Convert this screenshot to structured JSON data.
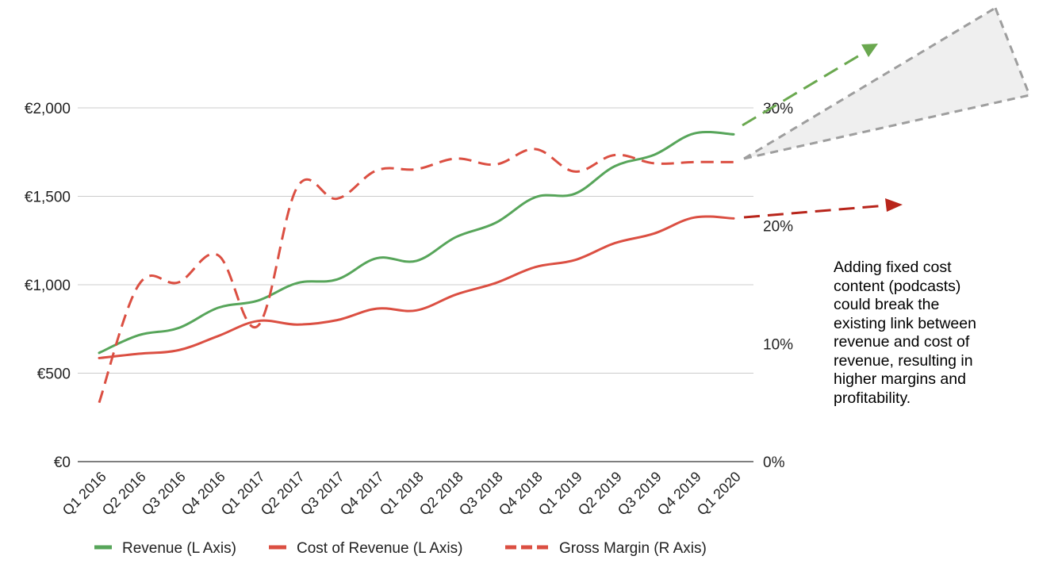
{
  "chart_data": {
    "type": "line",
    "categories": [
      "Q1 2016",
      "Q2 2016",
      "Q3 2016",
      "Q4 2016",
      "Q1 2017",
      "Q2 2017",
      "Q3 2017",
      "Q4 2017",
      "Q1 2018",
      "Q2 2018",
      "Q3 2018",
      "Q4 2018",
      "Q1 2019",
      "Q2 2019",
      "Q3 2019",
      "Q4 2019",
      "Q1 2020"
    ],
    "left_axis": {
      "ylim": [
        0,
        2000
      ],
      "ticks": [
        0,
        500,
        1000,
        1500,
        2000
      ],
      "tick_labels": [
        "€0",
        "€500",
        "€1,000",
        "€1,500",
        "€2,000"
      ]
    },
    "right_axis": {
      "ylim": [
        0,
        30
      ],
      "ticks": [
        0,
        10,
        20,
        30
      ],
      "tick_labels": [
        "0%",
        "10%",
        "20%",
        "30%"
      ]
    },
    "grid": true,
    "legend_position": "bottom",
    "series": [
      {
        "name": "Revenue (L Axis)",
        "axis": "left",
        "style": "solid",
        "color": "#57A55A",
        "values": [
          615,
          715,
          755,
          870,
          910,
          1010,
          1030,
          1150,
          1135,
          1270,
          1350,
          1495,
          1515,
          1670,
          1735,
          1855,
          1850
        ]
      },
      {
        "name": "Cost of Revenue (L Axis)",
        "axis": "left",
        "style": "solid",
        "color": "#DB4F42",
        "values": [
          585,
          610,
          630,
          710,
          795,
          775,
          800,
          865,
          855,
          945,
          1010,
          1100,
          1140,
          1235,
          1290,
          1380,
          1375
        ]
      },
      {
        "name": "Gross Margin (R Axis)",
        "axis": "right",
        "style": "dashed",
        "color": "#DB4F42",
        "values": [
          5.0,
          15.0,
          15.2,
          17.5,
          11.5,
          23.3,
          22.3,
          24.7,
          24.8,
          25.7,
          25.2,
          26.5,
          24.6,
          26.0,
          25.3,
          25.4,
          25.4
        ]
      }
    ],
    "projections": {
      "revenue_arrow_color": "#6AA84F",
      "cost_arrow_color": "#B8251B",
      "margin_cone_color": "#9E9E9E",
      "margin_cone_fill": "#EFEFEF"
    },
    "annotation": [
      "Adding fixed cost",
      "content (podcasts)",
      "could break the",
      "existing link between",
      "revenue and cost of",
      "revenue, resulting in",
      "higher margins and",
      "profitability."
    ]
  }
}
